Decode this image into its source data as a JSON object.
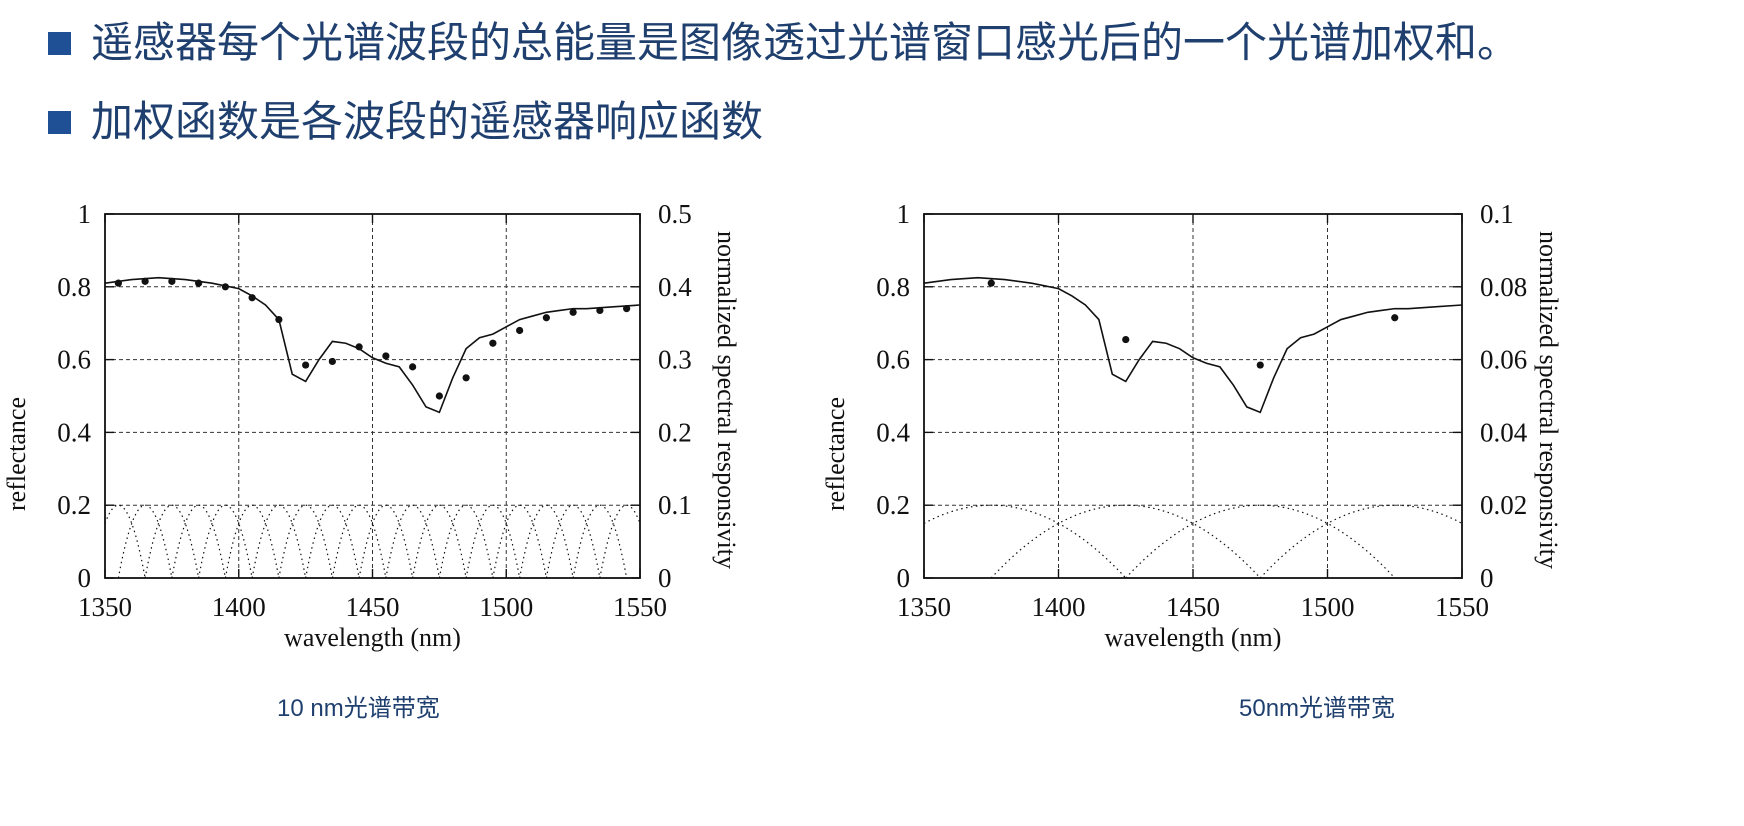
{
  "bullets": [
    "遥感器每个光谱波段的总能量是图像透过光谱窗口感光后的一个光谱加权和。",
    "加权函数是各波段的遥感器响应函数"
  ],
  "colors": {
    "bullet": "#1f4f95",
    "text": "#1f3f6f",
    "axis": "#111111",
    "grid": "#333333"
  },
  "captions": [
    "10 nm光谱带宽",
    "50nm光谱带宽"
  ],
  "chart_data": [
    {
      "type": "line",
      "xlabel": "wavelength (nm)",
      "ylabel": "reflectance",
      "y2label": "normalized spectral responsivity",
      "xlim": [
        1350,
        1550
      ],
      "ylim": [
        0,
        1
      ],
      "y2lim": [
        0,
        0.5
      ],
      "x_ticks": [
        1350,
        1400,
        1450,
        1500,
        1550
      ],
      "y_ticks": [
        0,
        0.2,
        0.4,
        0.6,
        0.8,
        1
      ],
      "y_tick_labels": [
        "0",
        "0.2",
        "0.4",
        "0.6",
        "0.8",
        "1"
      ],
      "y2_ticks": [
        0,
        0.1,
        0.2,
        0.3,
        0.4,
        0.5
      ],
      "y2_tick_labels": [
        "0",
        "0.1",
        "0.2",
        "0.3",
        "0.4",
        "0.5"
      ],
      "grid": true,
      "reflectance_curve": {
        "x": [
          1350,
          1360,
          1370,
          1380,
          1390,
          1400,
          1405,
          1410,
          1415,
          1420,
          1425,
          1430,
          1435,
          1440,
          1445,
          1450,
          1455,
          1460,
          1465,
          1470,
          1475,
          1480,
          1485,
          1490,
          1495,
          1500,
          1505,
          1510,
          1515,
          1520,
          1525,
          1530,
          1540,
          1550
        ],
        "y": [
          0.81,
          0.82,
          0.825,
          0.82,
          0.81,
          0.795,
          0.775,
          0.75,
          0.71,
          0.56,
          0.54,
          0.6,
          0.65,
          0.645,
          0.63,
          0.605,
          0.59,
          0.58,
          0.53,
          0.47,
          0.455,
          0.55,
          0.63,
          0.66,
          0.67,
          0.69,
          0.71,
          0.72,
          0.73,
          0.735,
          0.74,
          0.74,
          0.745,
          0.75
        ]
      },
      "band_points": {
        "x": [
          1355,
          1365,
          1375,
          1385,
          1395,
          1405,
          1415,
          1425,
          1435,
          1445,
          1455,
          1465,
          1475,
          1485,
          1495,
          1505,
          1515,
          1525,
          1535,
          1545
        ],
        "y": [
          0.81,
          0.815,
          0.815,
          0.81,
          0.8,
          0.77,
          0.71,
          0.585,
          0.595,
          0.635,
          0.61,
          0.58,
          0.5,
          0.55,
          0.645,
          0.68,
          0.715,
          0.73,
          0.735,
          0.74
        ]
      },
      "responsivity_curves": {
        "centers": [
          1355,
          1365,
          1375,
          1385,
          1395,
          1405,
          1415,
          1425,
          1435,
          1445,
          1455,
          1465,
          1475,
          1485,
          1495,
          1505,
          1515,
          1525,
          1535,
          1545
        ],
        "peak": 0.1,
        "half_width": 10
      }
    },
    {
      "type": "line",
      "xlabel": "wavelength (nm)",
      "ylabel": "reflectance",
      "y2label": "normalized spectral responsivity",
      "xlim": [
        1350,
        1550
      ],
      "ylim": [
        0,
        1
      ],
      "y2lim": [
        0,
        0.1
      ],
      "x_ticks": [
        1350,
        1400,
        1450,
        1500,
        1550
      ],
      "y_ticks": [
        0,
        0.2,
        0.4,
        0.6,
        0.8,
        1
      ],
      "y_tick_labels": [
        "0",
        "0.2",
        "0.4",
        "0.6",
        "0.8",
        "1"
      ],
      "y2_ticks": [
        0,
        0.02,
        0.04,
        0.06,
        0.08,
        0.1
      ],
      "y2_tick_labels": [
        "0",
        "0.02",
        "0.04",
        "0.06",
        "0.08",
        "0.1"
      ],
      "grid": true,
      "reflectance_curve": {
        "x": [
          1350,
          1360,
          1370,
          1380,
          1390,
          1400,
          1405,
          1410,
          1415,
          1420,
          1425,
          1430,
          1435,
          1440,
          1445,
          1450,
          1455,
          1460,
          1465,
          1470,
          1475,
          1480,
          1485,
          1490,
          1495,
          1500,
          1505,
          1510,
          1515,
          1520,
          1525,
          1530,
          1540,
          1550
        ],
        "y": [
          0.81,
          0.82,
          0.825,
          0.82,
          0.81,
          0.795,
          0.775,
          0.75,
          0.71,
          0.56,
          0.54,
          0.6,
          0.65,
          0.645,
          0.63,
          0.605,
          0.59,
          0.58,
          0.53,
          0.47,
          0.455,
          0.55,
          0.63,
          0.66,
          0.67,
          0.69,
          0.71,
          0.72,
          0.73,
          0.735,
          0.74,
          0.74,
          0.745,
          0.75
        ]
      },
      "band_points": {
        "x": [
          1375,
          1425,
          1475,
          1525
        ],
        "y": [
          0.81,
          0.655,
          0.585,
          0.715
        ]
      },
      "responsivity_curves": {
        "centers": [
          1375,
          1425,
          1475,
          1525
        ],
        "peak": 0.02,
        "half_width": 50
      }
    }
  ]
}
